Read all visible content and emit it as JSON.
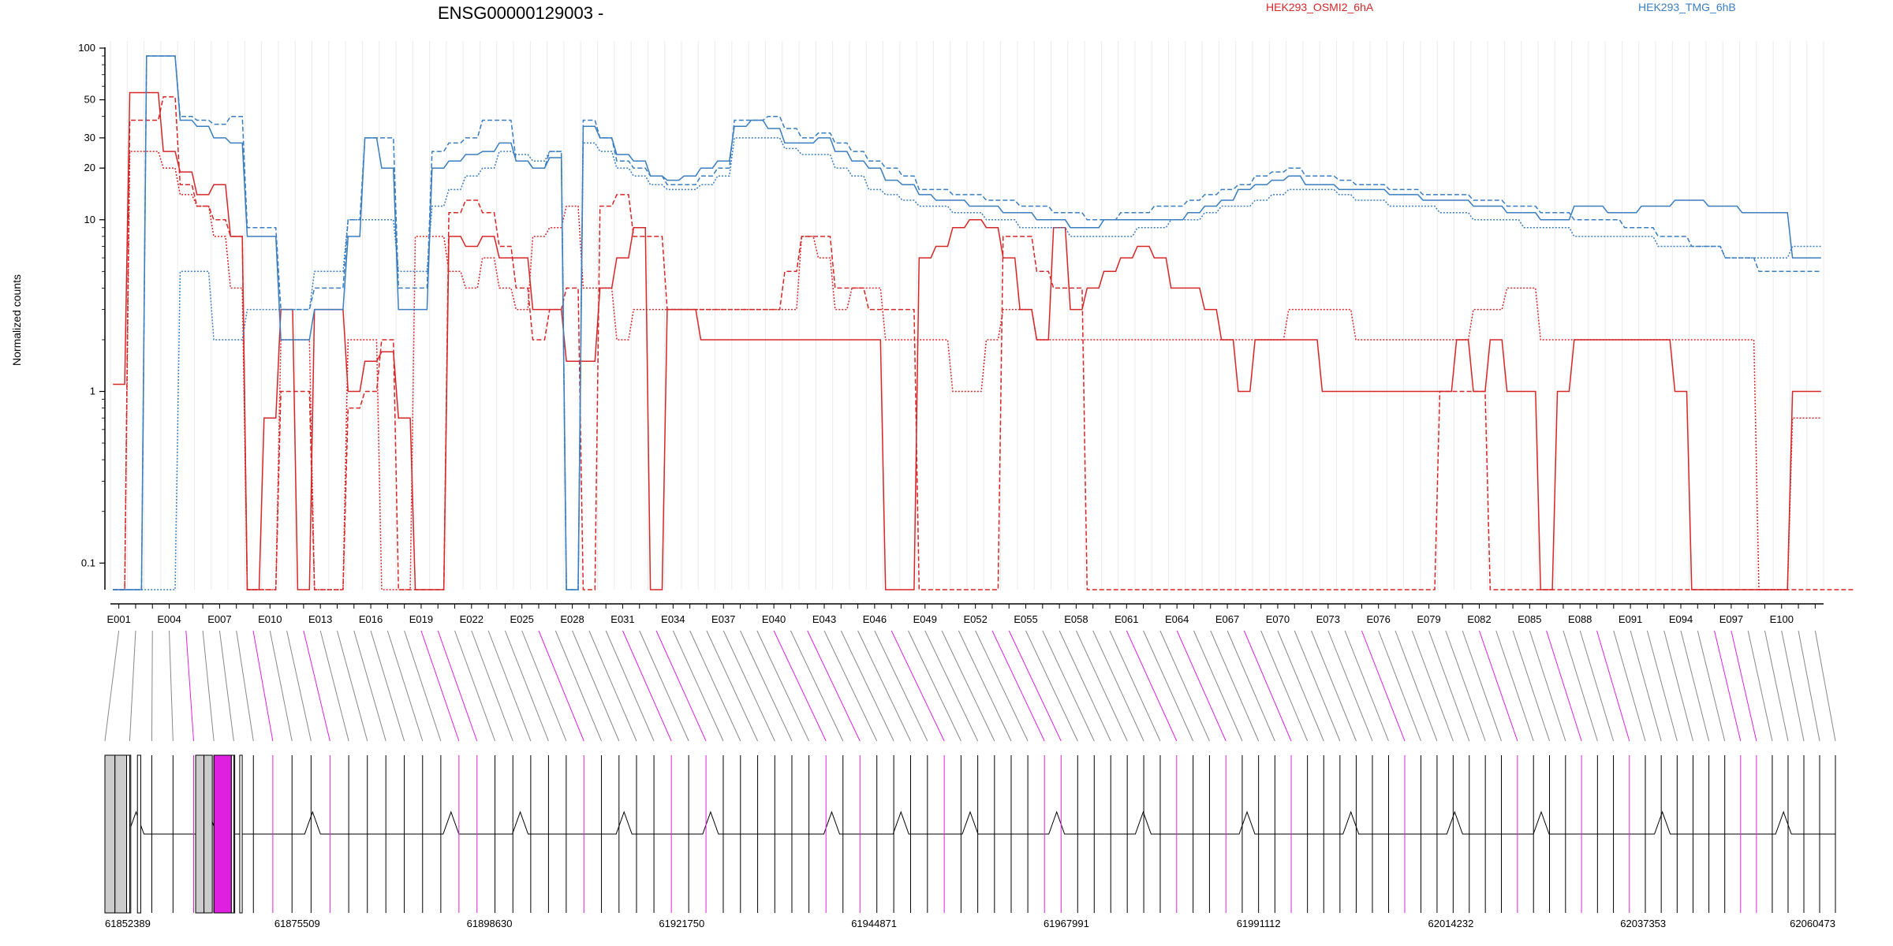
{
  "chart_data": {
    "type": "line",
    "title": "ENSG00000129003 -",
    "ylabel": "Normalized counts",
    "xlabel": "",
    "yscale": "log",
    "ylim": [
      0.07,
      110
    ],
    "y_ticks": [
      0.1,
      1,
      10,
      20,
      30,
      50,
      100
    ],
    "y_tick_labels": [
      "0.1",
      "1",
      "10",
      "20",
      "30",
      "50",
      "100"
    ],
    "grid": true,
    "legend": {
      "placement": "top",
      "entries": [
        {
          "label": "HEK293_OSMI2_6hA",
          "color": "#d62728"
        },
        {
          "label": "HEK293_TMG_6hB",
          "color": "#3a7ebf"
        }
      ]
    },
    "colors": {
      "osmi": "#d62728",
      "tmg": "#3a7ebf",
      "highlight": "#e020e0",
      "gray_exon": "#cccccc"
    },
    "exon_count": 102,
    "exon_tick_labels": [
      "E001",
      "E004",
      "E007",
      "E010",
      "E013",
      "E016",
      "E019",
      "E022",
      "E025",
      "E028",
      "E031",
      "E034",
      "E037",
      "E040",
      "E043",
      "E046",
      "E049",
      "E052",
      "E055",
      "E058",
      "E061",
      "E064",
      "E067",
      "E070",
      "E073",
      "E076",
      "E079",
      "E082",
      "E085",
      "E088",
      "E091",
      "E094",
      "E097",
      "E100"
    ],
    "genomic_ticks": [
      "61852389",
      "61875509",
      "61898630",
      "61921750",
      "61944871",
      "61967991",
      "61991112",
      "62014232",
      "62037353",
      "62060473"
    ],
    "genomic_range": [
      61852389,
      62060473
    ],
    "series": [
      {
        "name": "HEK293_OSMI2_6hA",
        "group": "osmi",
        "style": "solid",
        "values": [
          1.1,
          55,
          55,
          25,
          19,
          14,
          16,
          8,
          0.07,
          0.7,
          3,
          0.07,
          3,
          3,
          1,
          1.5,
          1.7,
          0.7,
          0.07,
          0.07,
          8,
          7,
          8,
          6,
          6,
          3,
          3,
          1.5,
          1.5,
          4,
          6,
          9,
          0.07,
          3,
          3,
          2,
          2,
          2,
          2,
          2,
          2,
          2,
          2,
          2,
          2,
          2,
          0.07,
          0.07,
          6,
          7,
          9,
          10,
          9,
          6,
          3,
          2,
          9,
          3,
          4,
          5,
          6,
          7,
          6,
          4,
          4,
          3,
          2,
          1,
          2,
          2,
          2,
          2,
          1,
          1,
          1,
          1,
          1,
          1,
          1,
          1,
          2,
          1,
          2,
          1,
          1,
          0.07,
          1,
          2,
          2,
          2,
          2,
          2,
          2,
          1,
          0.07,
          0.07,
          0.07,
          0.07,
          0.07,
          0.07,
          1,
          1
        ]
      },
      {
        "name": "HEK293_OSMI2_6hA",
        "group": "osmi",
        "style": "dashed",
        "values": [
          0.07,
          38,
          38,
          52,
          16,
          12,
          10,
          8,
          0.07,
          0.07,
          1,
          1,
          0.07,
          0.07,
          0.8,
          1,
          2,
          0.07,
          0.07,
          0.07,
          11,
          13,
          11,
          7,
          4,
          2,
          3,
          4,
          0.07,
          12,
          14,
          8,
          8,
          3,
          3,
          3,
          3,
          3,
          3,
          3,
          5,
          8,
          8,
          4,
          4,
          3,
          3,
          3,
          0.07,
          0.07,
          0.07,
          0.07,
          0.07,
          8,
          8,
          5,
          4,
          4,
          0.07,
          0.07,
          0.07,
          0.07,
          0.07,
          0.07,
          0.07,
          0.07,
          0.07,
          0.07,
          0.07,
          0.07,
          0.07,
          0.07,
          0.07,
          0.07,
          0.07,
          0.07,
          0.07,
          0.07,
          0.07,
          1,
          1,
          1,
          0.07,
          0.07,
          0.07,
          0.07,
          0.07,
          0.07,
          0.07,
          0.07,
          0.07,
          0.07,
          0.07,
          0.07,
          0.07,
          0.07,
          0.07,
          0.07,
          0.07,
          0.07,
          0.07,
          0.07,
          0.07,
          0.07
        ]
      },
      {
        "name": "HEK293_OSMI2_6hA",
        "group": "osmi",
        "style": "dotted",
        "values": [
          0.07,
          25,
          25,
          20,
          14,
          12,
          8,
          4,
          0.07,
          0.07,
          2,
          2,
          0.07,
          0.07,
          2,
          2,
          0.07,
          0.07,
          8,
          8,
          5,
          4,
          6,
          4,
          3,
          8,
          9,
          12,
          4,
          4,
          2,
          3,
          3,
          3,
          3,
          3,
          3,
          3,
          3,
          3,
          3,
          8,
          6,
          3,
          4,
          4,
          2,
          2,
          2,
          2,
          1,
          1,
          2,
          3,
          3,
          2,
          2,
          2,
          2,
          2,
          2,
          2,
          2,
          2,
          2,
          2,
          2,
          2,
          2,
          2,
          3,
          3,
          3,
          3,
          2,
          2,
          2,
          2,
          2,
          2,
          2,
          3,
          3,
          4,
          4,
          2,
          2,
          2,
          2,
          2,
          2,
          2,
          2,
          2,
          2,
          2,
          2,
          2,
          0.07,
          0.07,
          0.7,
          0.7
        ]
      },
      {
        "name": "HEK293_TMG_6hB",
        "group": "tmg",
        "style": "solid",
        "values": [
          0.07,
          0.07,
          90,
          90,
          38,
          35,
          30,
          28,
          8,
          8,
          2,
          2,
          3,
          3,
          8,
          30,
          20,
          3,
          3,
          20,
          22,
          24,
          25,
          28,
          22,
          20,
          23,
          0.07,
          35,
          30,
          24,
          22,
          18,
          17,
          18,
          20,
          22,
          35,
          38,
          34,
          28,
          28,
          30,
          25,
          22,
          20,
          17,
          16,
          14,
          13,
          13,
          12,
          12,
          11,
          11,
          10,
          10,
          9,
          9,
          10,
          10,
          10,
          10,
          10,
          11,
          12,
          13,
          15,
          16,
          17,
          18,
          16,
          16,
          15,
          15,
          15,
          14,
          14,
          13,
          13,
          13,
          12,
          12,
          11,
          11,
          10,
          10,
          12,
          12,
          11,
          11,
          12,
          12,
          13,
          13,
          12,
          12,
          11,
          11,
          11,
          6,
          6
        ]
      },
      {
        "name": "HEK293_TMG_6hB",
        "group": "tmg",
        "style": "dashed",
        "values": [
          0.07,
          0.07,
          90,
          90,
          40,
          38,
          36,
          40,
          9,
          9,
          3,
          3,
          4,
          4,
          10,
          30,
          30,
          4,
          4,
          25,
          28,
          30,
          38,
          38,
          22,
          20,
          25,
          0.07,
          38,
          30,
          22,
          20,
          18,
          16,
          16,
          18,
          20,
          38,
          38,
          40,
          34,
          30,
          32,
          28,
          25,
          22,
          20,
          18,
          15,
          15,
          14,
          14,
          13,
          13,
          12,
          12,
          11,
          11,
          10,
          10,
          11,
          11,
          12,
          12,
          13,
          14,
          15,
          16,
          18,
          19,
          20,
          18,
          18,
          17,
          16,
          16,
          15,
          15,
          14,
          14,
          14,
          13,
          13,
          12,
          12,
          11,
          11,
          10,
          10,
          10,
          9,
          9,
          8,
          8,
          7,
          7,
          6,
          6,
          5,
          5,
          5,
          5
        ]
      },
      {
        "name": "HEK293_TMG_6hB",
        "group": "tmg",
        "style": "dotted",
        "values": [
          0.07,
          0.07,
          0.07,
          0.07,
          5,
          5,
          2,
          2,
          3,
          3,
          3,
          3,
          5,
          5,
          10,
          10,
          10,
          5,
          5,
          12,
          15,
          18,
          20,
          25,
          24,
          22,
          25,
          0.07,
          28,
          25,
          20,
          18,
          16,
          15,
          15,
          16,
          18,
          30,
          30,
          30,
          26,
          24,
          24,
          20,
          18,
          15,
          14,
          13,
          12,
          12,
          11,
          11,
          10,
          10,
          9,
          9,
          9,
          8,
          8,
          8,
          8,
          9,
          9,
          10,
          10,
          11,
          12,
          12,
          13,
          14,
          15,
          15,
          15,
          14,
          13,
          13,
          12,
          12,
          12,
          11,
          11,
          10,
          10,
          10,
          9,
          9,
          9,
          8,
          8,
          8,
          8,
          8,
          7,
          7,
          7,
          7,
          6,
          6,
          6,
          6,
          7,
          7
        ]
      }
    ],
    "transcript_exons": [
      {
        "start": 61852389,
        "end": 61853600,
        "fill": "#cccccc"
      },
      {
        "start": 61853600,
        "end": 61855000,
        "fill": "#cccccc"
      },
      {
        "start": 61855000,
        "end": 61855500,
        "fill": "#ffffff"
      },
      {
        "start": 61856300,
        "end": 61856700,
        "fill": "#ffffff"
      },
      {
        "start": 61863300,
        "end": 61864300,
        "fill": "#cccccc"
      },
      {
        "start": 61864300,
        "end": 61865300,
        "fill": "#cccccc"
      },
      {
        "start": 61865500,
        "end": 61867600,
        "fill": "#e020e0"
      },
      {
        "start": 61867600,
        "end": 61868000,
        "fill": "#ffffff"
      },
      {
        "start": 61868600,
        "end": 61868900,
        "fill": "#ffffff"
      }
    ]
  }
}
